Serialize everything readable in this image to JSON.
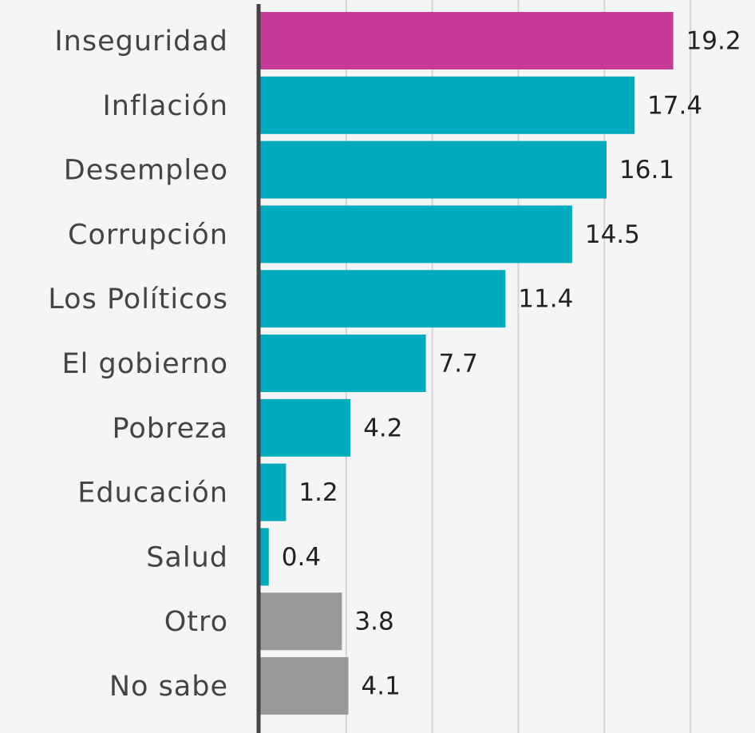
{
  "chart_data": {
    "type": "bar",
    "orientation": "horizontal",
    "categories": [
      "Inseguridad",
      "Inflación",
      "Desempleo",
      "Corrupción",
      "Los Políticos",
      "El gobierno",
      "Pobreza",
      "Educación",
      "Salud",
      "Otro",
      "No sabe"
    ],
    "values": [
      19.2,
      17.4,
      16.1,
      14.5,
      11.4,
      7.7,
      4.2,
      1.2,
      0.4,
      3.8,
      4.1
    ],
    "colors": [
      "#c53a96",
      "#00abbd",
      "#00abbd",
      "#00abbd",
      "#00abbd",
      "#00abbd",
      "#00abbd",
      "#00abbd",
      "#00abbd",
      "#999999",
      "#999999"
    ],
    "xlim": [
      0,
      23
    ],
    "xticks": [
      4,
      8,
      12,
      16,
      20
    ],
    "grid": true
  }
}
